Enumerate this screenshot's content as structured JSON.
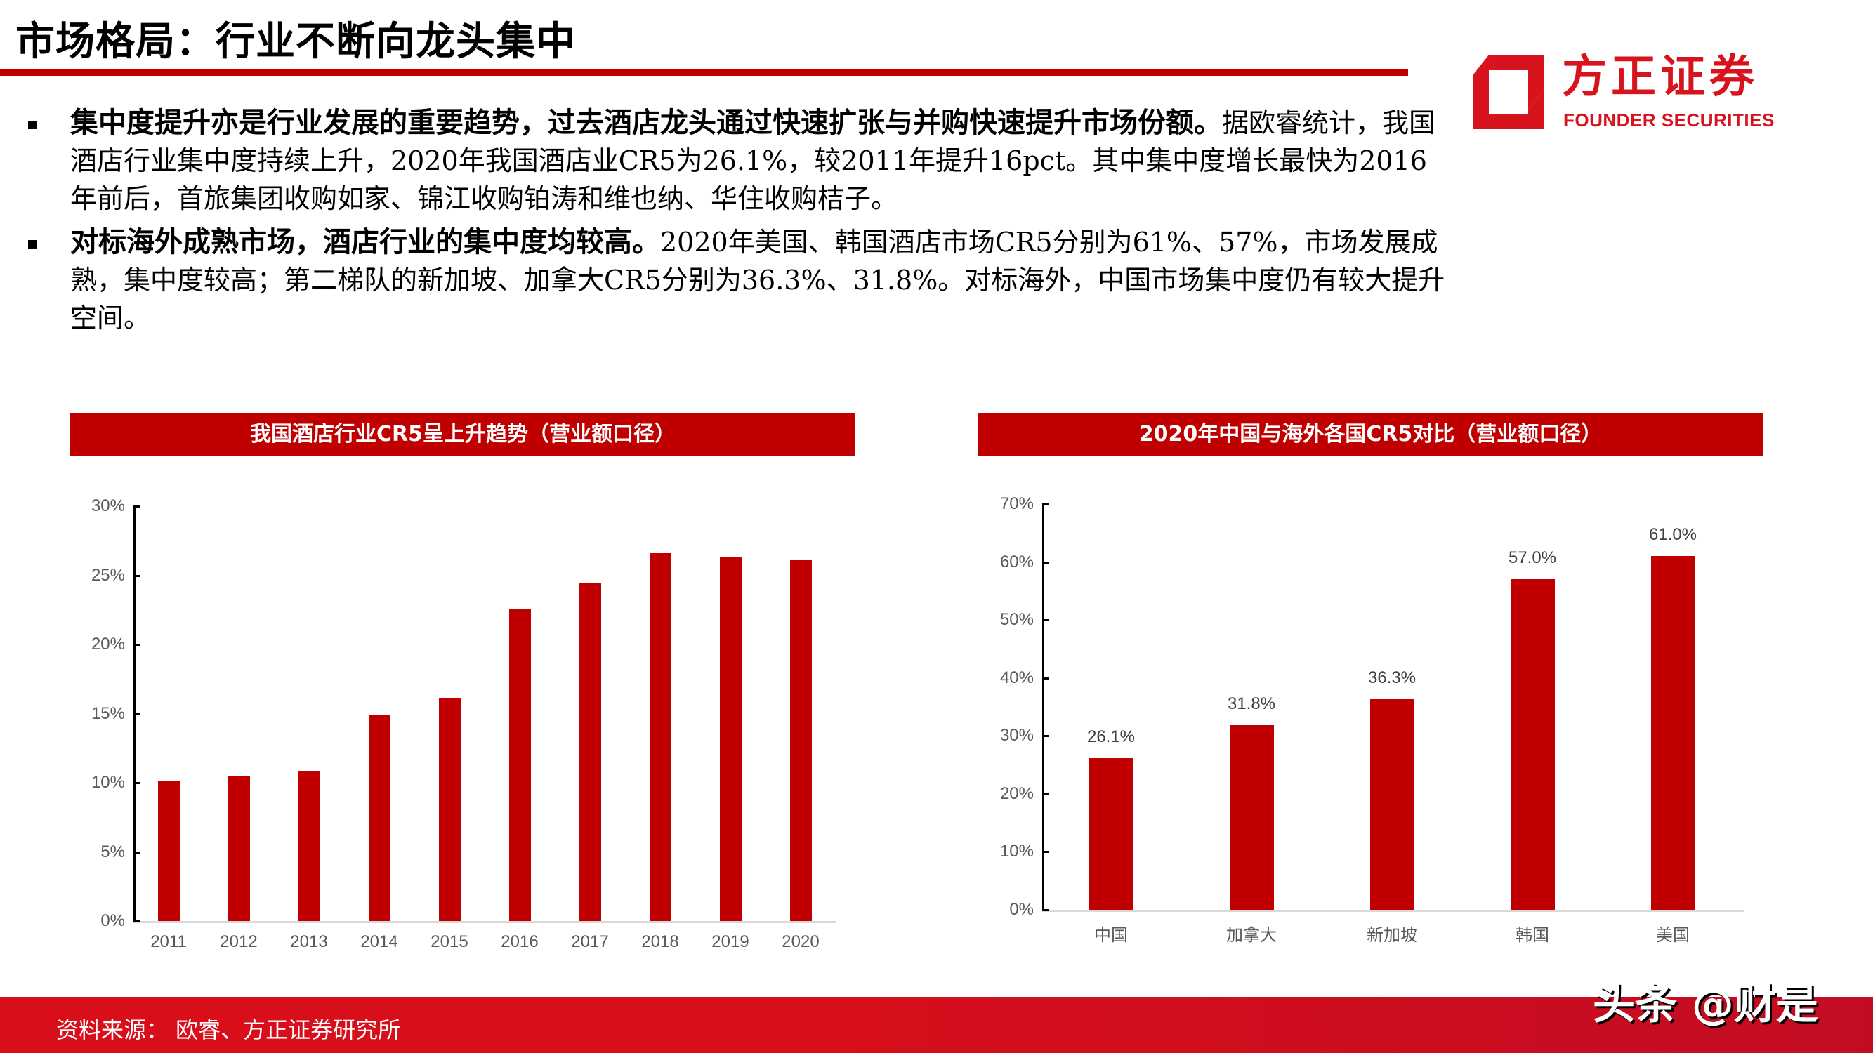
{
  "header": {
    "title": "市场格局：行业不断向龙头集中",
    "accent_color": "#c00000"
  },
  "logo": {
    "name_cn": "方正证券",
    "name_en": "FOUNDER SECURITIES",
    "color": "#d7141d"
  },
  "bullets": [
    {
      "lead": "集中度提升亦是行业发展的重要趋势，过去酒店龙头通过快速扩张与并购快速提升市场份额。",
      "text": "据欧睿统计，我国酒店行业集中度持续上升，2020年我国酒店业CR5为26.1%，较2011年提升16pct。其中集中度增长最快为2016年前后，首旅集团收购如家、锦江收购铂涛和维也纳、华住收购桔子。"
    },
    {
      "lead": "对标海外成熟市场，酒店行业的集中度均较高。",
      "text": "2020年美国、韩国酒店市场CR5分别为61%、57%，市场发展成熟，集中度较高；第二梯队的新加坡、加拿大CR5分别为36.3%、31.8%。对标海外，中国市场集中度仍有较大提升空间。"
    }
  ],
  "chart_data": [
    {
      "type": "bar",
      "title": "我国酒店行业CR5呈上升趋势（营业额口径）",
      "categories": [
        "2011",
        "2012",
        "2013",
        "2014",
        "2015",
        "2016",
        "2017",
        "2018",
        "2019",
        "2020"
      ],
      "values": [
        10.1,
        10.5,
        10.8,
        14.9,
        16.1,
        22.6,
        24.4,
        26.6,
        26.3,
        26.1
      ],
      "unit": "%",
      "xlabel": "",
      "ylabel": "",
      "ylim": [
        0,
        30
      ],
      "y_ticks": [
        "0%",
        "5%",
        "10%",
        "15%",
        "20%",
        "25%",
        "30%"
      ],
      "grid": false,
      "legend": "none",
      "bar_color": "#c00000"
    },
    {
      "type": "bar",
      "title": "2020年中国与海外各国CR5对比（营业额口径）",
      "categories": [
        "中国",
        "加拿大",
        "新加坡",
        "韩国",
        "美国"
      ],
      "values": [
        26.1,
        31.8,
        36.3,
        57.0,
        61.0
      ],
      "data_labels": [
        "26.1%",
        "31.8%",
        "36.3%",
        "57.0%",
        "61.0%"
      ],
      "unit": "%",
      "xlabel": "",
      "ylabel": "",
      "ylim": [
        0,
        70
      ],
      "y_ticks": [
        "0%",
        "10%",
        "20%",
        "30%",
        "40%",
        "50%",
        "60%",
        "70%"
      ],
      "grid": false,
      "legend": "none",
      "bar_color": "#c00000"
    }
  ],
  "footer": {
    "source": "资料来源：  欧睿、方正证券研究所",
    "watermark": "头条 @财是"
  }
}
